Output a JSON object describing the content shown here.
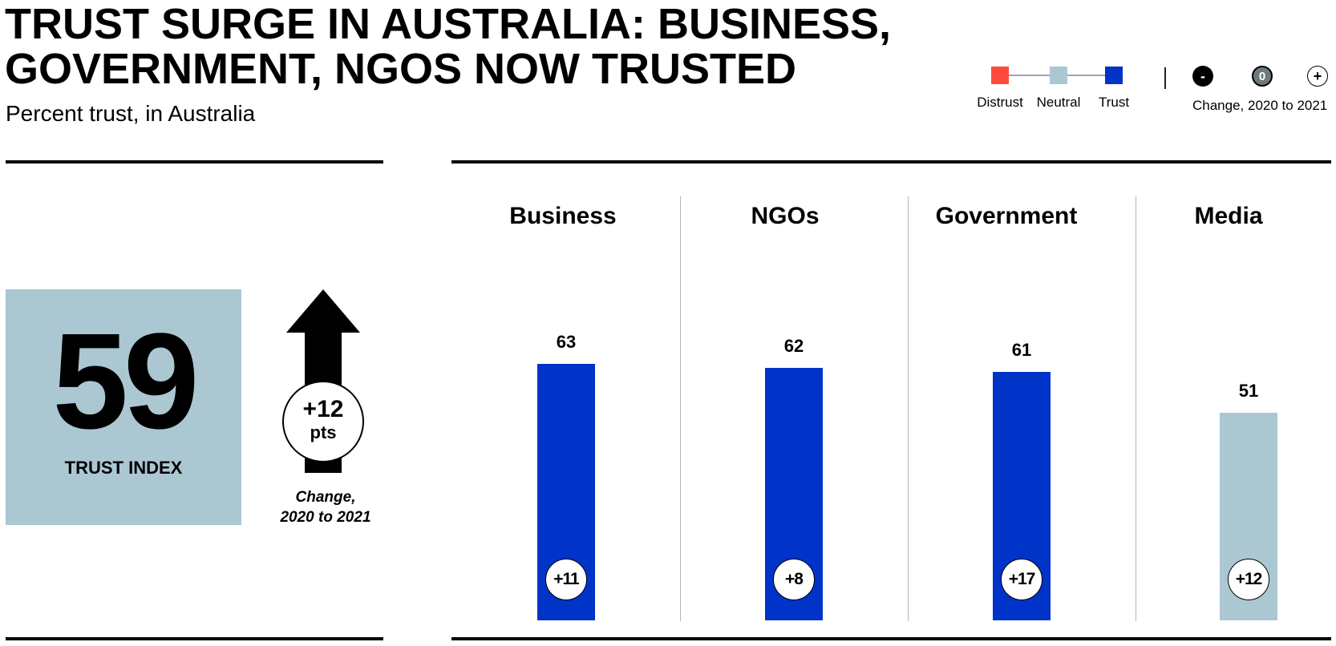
{
  "title": {
    "line1": "TRUST SURGE IN AUSTRALIA: BUSINESS,",
    "line2": "GOVERNMENT, NGOS NOW TRUSTED"
  },
  "subtitle": "Percent trust, in Australia",
  "legend": {
    "distrust": "Distrust",
    "neutral": "Neutral",
    "trust": "Trust",
    "minus_symbol": "-",
    "zero_symbol": "0",
    "plus_symbol": "+",
    "change_label": "Change, 2020 to 2021"
  },
  "colors": {
    "distrust": "#ff4b3e",
    "neutral": "#abc7d2",
    "trust": "#0033c8",
    "change_zero": "#6e7a7d"
  },
  "trust_index": {
    "value": "59",
    "label": "TRUST INDEX",
    "change_value": "+12",
    "change_unit": "pts",
    "change_note_line1": "Change,",
    "change_note_line2": "2020 to 2021",
    "direction_icon": "arrow-up-icon"
  },
  "chart_data": {
    "type": "bar",
    "categories": [
      "Business",
      "NGOs",
      "Government",
      "Media"
    ],
    "values": [
      63,
      62,
      61,
      51
    ],
    "labels": [
      "63",
      "62",
      "61",
      "51"
    ],
    "changes": [
      "+11",
      "+8",
      "+17",
      "+12"
    ],
    "classification": [
      "trust",
      "trust",
      "trust",
      "neutral"
    ],
    "ylim": [
      0,
      100
    ],
    "xlabel": "",
    "ylabel": "",
    "grid": false
  }
}
